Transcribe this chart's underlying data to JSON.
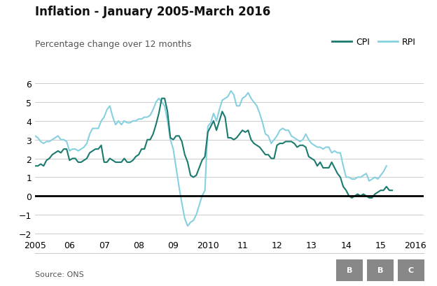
{
  "title": "Inflation - January 2005-March 2016",
  "subtitle": "Percentage change over 12 months",
  "source": "Source: ONS",
  "legend_labels": [
    "CPI",
    "RPI"
  ],
  "cpi_color": "#1a7a6e",
  "rpi_color": "#87d0e0",
  "background_color": "#ffffff",
  "zero_line_color": "#000000",
  "grid_color": "#cccccc",
  "bbc_box_color": "#888888",
  "ylim": [
    -2.2,
    6.2
  ],
  "yticks": [
    -2,
    -1,
    0,
    1,
    2,
    3,
    4,
    5,
    6
  ],
  "xtick_positions": [
    2005,
    2006,
    2007,
    2008,
    2009,
    2010,
    2011,
    2012,
    2013,
    2014,
    2015,
    2016
  ],
  "xtick_labels": [
    "2005",
    "06",
    "07",
    "08",
    "09",
    "2010",
    "11",
    "12",
    "13",
    "14",
    "15",
    "2016"
  ],
  "cpi_data": [
    1.6,
    1.6,
    1.7,
    1.6,
    1.9,
    2.0,
    2.2,
    2.3,
    2.4,
    2.3,
    2.5,
    2.5,
    1.9,
    2.0,
    2.0,
    1.8,
    1.8,
    1.9,
    2.0,
    2.3,
    2.4,
    2.5,
    2.5,
    2.7,
    1.8,
    1.8,
    2.0,
    1.9,
    1.8,
    1.8,
    1.8,
    2.0,
    1.8,
    1.8,
    1.9,
    2.1,
    2.2,
    2.5,
    2.5,
    3.0,
    3.0,
    3.3,
    3.8,
    4.4,
    5.2,
    5.2,
    4.5,
    3.1,
    3.0,
    3.2,
    3.2,
    2.9,
    2.2,
    1.8,
    1.1,
    1.0,
    1.1,
    1.5,
    1.9,
    2.1,
    3.4,
    3.7,
    4.0,
    3.5,
    4.0,
    4.5,
    4.2,
    3.1,
    3.1,
    3.0,
    3.1,
    3.3,
    3.5,
    3.4,
    3.5,
    3.0,
    2.8,
    2.7,
    2.6,
    2.4,
    2.2,
    2.2,
    2.0,
    2.0,
    2.7,
    2.8,
    2.8,
    2.9,
    2.9,
    2.9,
    2.8,
    2.6,
    2.7,
    2.7,
    2.6,
    2.1,
    2.0,
    1.9,
    1.6,
    1.8,
    1.5,
    1.5,
    1.5,
    1.8,
    1.5,
    1.2,
    1.0,
    0.5,
    0.3,
    0.0,
    -0.1,
    0.0,
    0.1,
    0.0,
    0.1,
    0.0,
    -0.1,
    -0.1,
    0.1,
    0.2,
    0.3,
    0.3,
    0.5,
    0.3,
    0.3
  ],
  "rpi_data": [
    3.2,
    3.1,
    2.9,
    2.8,
    2.9,
    2.9,
    3.0,
    3.1,
    3.2,
    3.0,
    3.0,
    2.9,
    2.4,
    2.5,
    2.5,
    2.4,
    2.5,
    2.6,
    2.8,
    3.3,
    3.6,
    3.6,
    3.6,
    4.0,
    4.2,
    4.6,
    4.8,
    4.2,
    3.8,
    4.0,
    3.8,
    4.0,
    3.9,
    3.9,
    4.0,
    4.0,
    4.1,
    4.1,
    4.2,
    4.2,
    4.3,
    4.6,
    5.0,
    5.2,
    5.0,
    4.8,
    4.0,
    3.0,
    2.5,
    1.5,
    0.5,
    -0.4,
    -1.2,
    -1.6,
    -1.4,
    -1.3,
    -1.0,
    -0.5,
    0.0,
    0.3,
    3.7,
    3.9,
    4.4,
    4.0,
    4.6,
    5.1,
    5.2,
    5.3,
    5.6,
    5.4,
    4.8,
    4.8,
    5.2,
    5.3,
    5.5,
    5.2,
    5.0,
    4.8,
    4.4,
    3.9,
    3.3,
    3.2,
    2.8,
    3.0,
    3.2,
    3.5,
    3.6,
    3.5,
    3.5,
    3.2,
    3.1,
    3.0,
    2.9,
    3.0,
    3.3,
    3.0,
    2.8,
    2.7,
    2.6,
    2.6,
    2.5,
    2.6,
    2.6,
    2.3,
    2.4,
    2.3,
    2.3,
    1.6,
    1.0,
    1.0,
    0.9,
    0.9,
    1.0,
    1.0,
    1.1,
    1.2,
    0.8,
    0.9,
    1.0,
    0.9,
    1.1,
    1.3,
    1.6
  ]
}
